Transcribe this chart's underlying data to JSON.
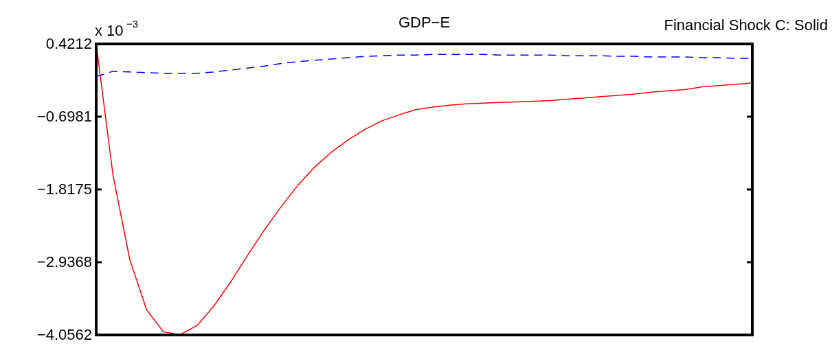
{
  "chart_data": {
    "type": "line",
    "title": "GDP−E",
    "annotations": [
      "x 10$^{−3}$",
      "Financial Shock C: Solid"
    ],
    "categories": [
      null,
      null,
      null,
      null,
      null,
      null,
      null,
      null,
      null,
      null,
      null,
      null,
      null,
      null,
      null,
      null,
      null,
      null,
      null,
      null,
      null,
      null,
      null,
      null,
      null,
      null,
      null,
      null,
      null,
      null,
      null,
      null,
      null,
      null,
      null,
      null,
      null,
      null,
      null,
      null
    ],
    "series": [
      {
        "color": "#ff0000",
        "line_style": "solid",
        "values": [
          0.42,
          -1.6,
          -2.9,
          -3.67,
          -4.01,
          -4.05,
          -3.91,
          -3.61,
          -3.24,
          -2.83,
          -2.44,
          -2.08,
          -1.75,
          -1.47,
          -1.24,
          -1.05,
          -0.89,
          -0.76,
          -0.67,
          -0.59,
          -0.55,
          -0.52,
          -0.5,
          -0.49,
          -0.48,
          -0.47,
          -0.46,
          -0.45,
          -0.43,
          -0.41,
          -0.39,
          -0.37,
          -0.35,
          -0.32,
          -0.3,
          -0.28,
          -0.24,
          -0.22,
          -0.2,
          -0.18
        ]
      },
      {
        "color": "#0000ff",
        "line_style": "dashed",
        "values": [
          -0.08,
          0.0,
          -0.01,
          -0.02,
          -0.03,
          -0.03,
          -0.03,
          -0.01,
          0.02,
          0.05,
          0.08,
          0.12,
          0.15,
          0.17,
          0.19,
          0.21,
          0.23,
          0.24,
          0.25,
          0.25,
          0.26,
          0.26,
          0.26,
          0.26,
          0.25,
          0.25,
          0.25,
          0.25,
          0.24,
          0.24,
          0.24,
          0.23,
          0.23,
          0.22,
          0.22,
          0.22,
          0.21,
          0.21,
          0.2,
          0.2
        ]
      }
    ],
    "ylim": [
      -4.0562,
      0.4212
    ],
    "yticks": [
      0.4212,
      {
        "value": -0.6981,
        "label": "−0.6981"
      },
      {
        "value": -1.8175,
        "label": "−1.8175"
      },
      {
        "value": -2.9368,
        "label": "−2.9368"
      },
      {
        "value": -4.0562,
        "label": "−4.0562"
      }
    ],
    "marker": "none"
  }
}
